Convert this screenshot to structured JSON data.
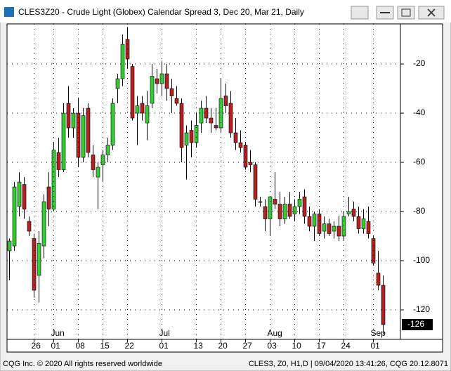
{
  "window": {
    "title": "CLES3Z20 - Crude Light (Globex) Calendar Spread 3, Dec 20, Mar 21, Daily",
    "status_left": "CQG Inc. © 2020 All rights reserved worldwide",
    "status_right": "CLES3, Z0, H1,D | 09/04/2020 13:41:26, CQG 20.12.8071"
  },
  "chart_data": {
    "type": "candlestick",
    "categories": [
      null,
      null,
      null,
      null,
      null,
      "26",
      null,
      null,
      null,
      "01",
      null,
      null,
      null,
      null,
      "08",
      null,
      null,
      null,
      null,
      "15",
      null,
      null,
      null,
      null,
      "22",
      null,
      null,
      null,
      null,
      null,
      null,
      "01",
      null,
      null,
      null,
      null,
      null,
      null,
      "13",
      null,
      null,
      null,
      null,
      "20",
      null,
      null,
      null,
      null,
      "27",
      null,
      null,
      null,
      null,
      "03",
      null,
      null,
      null,
      null,
      "10",
      null,
      null,
      null,
      null,
      "17",
      null,
      null,
      null,
      null,
      "24",
      null,
      null,
      null,
      null,
      null,
      "01",
      null,
      null
    ],
    "month_labels": [
      null,
      null,
      null,
      null,
      null,
      null,
      null,
      null,
      null,
      "Jun",
      null,
      null,
      null,
      null,
      null,
      null,
      null,
      null,
      null,
      null,
      null,
      null,
      null,
      null,
      null,
      null,
      null,
      null,
      null,
      null,
      null,
      "Jul",
      null,
      null,
      null,
      null,
      null,
      null,
      null,
      null,
      null,
      null,
      null,
      null,
      null,
      null,
      null,
      null,
      null,
      null,
      null,
      null,
      null,
      "Aug",
      null,
      null,
      null,
      null,
      null,
      null,
      null,
      null,
      null,
      null,
      null,
      null,
      null,
      null,
      null,
      null,
      null,
      null,
      null,
      null,
      "Sep",
      null,
      null
    ],
    "open": [
      -96,
      -94,
      -78,
      -69,
      -84,
      -91,
      -106,
      -94,
      -70,
      -79,
      -56,
      -63,
      -36,
      -46,
      -40,
      -58,
      -38,
      -57,
      -66,
      -61,
      -57,
      -53,
      -30,
      -26,
      -10,
      -21,
      -40,
      -36,
      -44,
      -36,
      -26,
      -28,
      -24,
      -30,
      -34,
      -36,
      -53,
      -47,
      -52,
      -44,
      -38,
      -42,
      -45,
      -46,
      -33,
      -36,
      -48,
      -52,
      -53,
      -60,
      -61,
      -76,
      -78,
      -83,
      -75,
      -77,
      -83,
      -77,
      -81,
      -78,
      -74,
      -82,
      -86,
      -81,
      -88,
      -85,
      -88,
      -86,
      -90,
      -81,
      -79,
      -82,
      -87,
      -84,
      -91,
      -105,
      -110
    ],
    "high": [
      -91,
      -68,
      -64,
      -66,
      -82,
      -89,
      -88,
      -73,
      -64,
      -52,
      -50,
      -36,
      -29,
      -38,
      -34,
      -38,
      -36,
      -53,
      -60,
      -55,
      -50,
      -34,
      -24,
      -8,
      -5,
      -20,
      -33,
      -33,
      -31,
      -20,
      -22,
      -19,
      -20,
      -26,
      -29,
      -34,
      -45,
      -43,
      -40,
      -35,
      -33,
      -38,
      -38,
      -26,
      -28,
      -31,
      -42,
      -47,
      -52,
      -55,
      -60,
      -74,
      -75,
      -74,
      -64,
      -72,
      -74,
      -72,
      -75,
      -72,
      -71,
      -78,
      -80,
      -79,
      -82,
      -83,
      -84,
      -82,
      -80,
      -74,
      -76,
      -78,
      -79,
      -78,
      -90,
      -96,
      -106
    ],
    "low": [
      -108,
      -96,
      -82,
      -83,
      -90,
      -115,
      -117,
      -99,
      -86,
      -80,
      -66,
      -64,
      -50,
      -50,
      -62,
      -60,
      -58,
      -66,
      -79,
      -68,
      -60,
      -55,
      -36,
      -29,
      -22,
      -43,
      -53,
      -43,
      -51,
      -38,
      -32,
      -33,
      -35,
      -40,
      -37,
      -60,
      -67,
      -58,
      -54,
      -48,
      -44,
      -48,
      -47,
      -48,
      -40,
      -50,
      -55,
      -56,
      -63,
      -64,
      -78,
      -78,
      -88,
      -90,
      -79,
      -86,
      -85,
      -83,
      -84,
      -81,
      -85,
      -88,
      -92,
      -90,
      -91,
      -90,
      -91,
      -92,
      -92,
      -82,
      -84,
      -89,
      -89,
      -91,
      -102,
      -112,
      -130
    ],
    "close": [
      -92,
      -70,
      -68,
      -79,
      -88,
      -112,
      -93,
      -76,
      -79,
      -55,
      -63,
      -40,
      -46,
      -40,
      -58,
      -41,
      -56,
      -63,
      -62,
      -57,
      -53,
      -36,
      -26,
      -12,
      -18,
      -42,
      -37,
      -40,
      -37,
      -25,
      -28,
      -24,
      -30,
      -33,
      -36,
      -54,
      -48,
      -52,
      -45,
      -38,
      -42,
      -44,
      -46,
      -34,
      -37,
      -48,
      -52,
      -54,
      -62,
      -61,
      -75,
      -76,
      -83,
      -74,
      -77,
      -83,
      -77,
      -82,
      -78,
      -75,
      -82,
      -86,
      -81,
      -89,
      -85,
      -89,
      -86,
      -90,
      -82,
      -80,
      -82,
      -87,
      -83,
      -89,
      -101,
      -110,
      -126
    ],
    "up_color": "#33cc33",
    "down_color": "#b22222",
    "ylim": [
      -132,
      -3.7
    ],
    "yticks": [
      -120,
      -100,
      -80,
      -60,
      -40,
      -20
    ],
    "grid": true
  }
}
